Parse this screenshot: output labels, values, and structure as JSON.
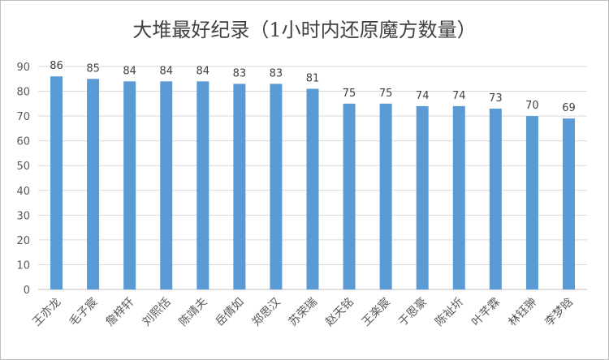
{
  "chart_data": {
    "type": "bar",
    "title": "大堆最好纪录（1小时内还原魔方数量）",
    "categories": [
      "王亦龙",
      "毛子宸",
      "詹梓轩",
      "刘熙恬",
      "陈靖夫",
      "岳倩如",
      "郑思汉",
      "苏荣瑞",
      "赵天铭",
      "王楽宸",
      "于恩豪",
      "陈祉圻",
      "叶芊霖",
      "林钰翀",
      "李梦晗"
    ],
    "values": [
      86,
      85,
      84,
      84,
      84,
      83,
      83,
      81,
      75,
      75,
      74,
      74,
      73,
      70,
      69
    ],
    "yticks": [
      0,
      10,
      20,
      30,
      40,
      50,
      60,
      70,
      80,
      90
    ],
    "ylim": [
      0,
      90
    ],
    "grid": true,
    "legend": "none",
    "bar_color": "#5b9bd5"
  }
}
